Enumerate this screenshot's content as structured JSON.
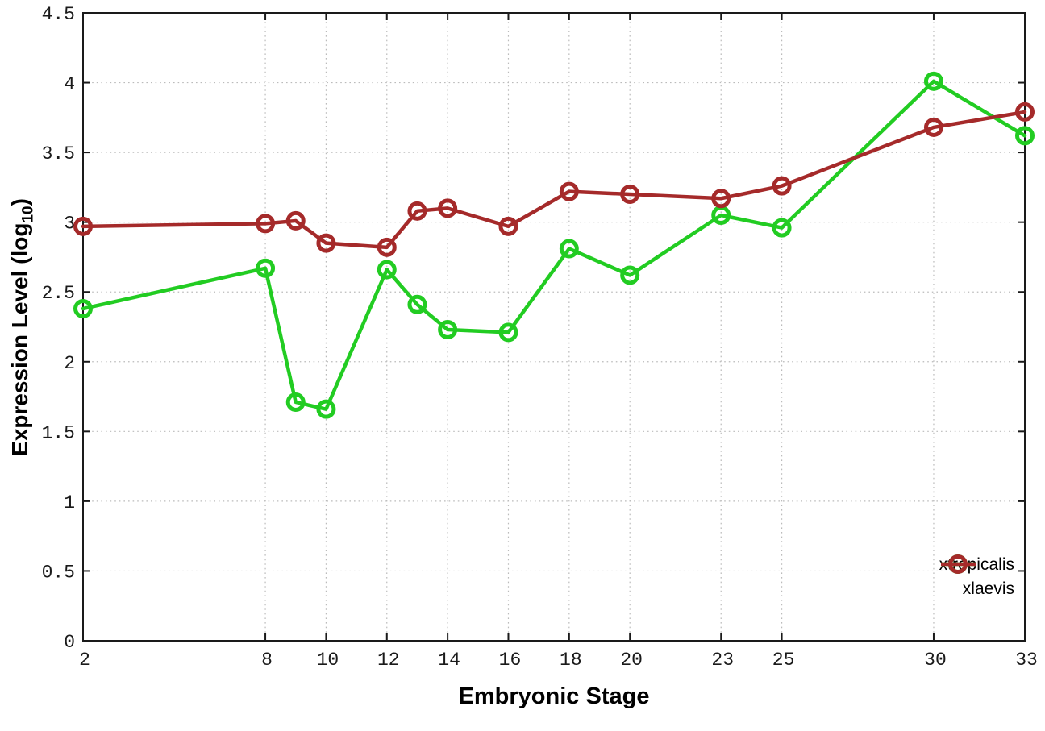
{
  "chart_data": {
    "type": "line",
    "title": "",
    "xlabel": "Embryonic Stage",
    "ylabel": "Expression Level (log10)",
    "ylabel_parts": {
      "main": "Expression Level (log",
      "sub": "10",
      "end": ")"
    },
    "xlim": [
      2,
      33
    ],
    "ylim": [
      0,
      4.5
    ],
    "grid": true,
    "legend_position": "bottom-right",
    "xticks": [
      2,
      8,
      10,
      12,
      14,
      16,
      18,
      20,
      23,
      25,
      30,
      33
    ],
    "xtick_labels": [
      "2",
      "8",
      "10",
      "12",
      "14",
      "16",
      "18",
      "20",
      "23",
      "25",
      "30",
      "33"
    ],
    "yticks": [
      0,
      0.5,
      1,
      1.5,
      2,
      2.5,
      3,
      3.5,
      4,
      4.5
    ],
    "ytick_labels": [
      "0",
      "0.5",
      "1",
      "1.5",
      "2",
      "2.5",
      "3",
      "3.5",
      "4",
      "4.5"
    ],
    "x": [
      2,
      8,
      9,
      10,
      12,
      13,
      14,
      16,
      18,
      20,
      23,
      25,
      30,
      33
    ],
    "series": [
      {
        "name": "xtropicalis",
        "color": "#22cc22",
        "marker": "open-circle",
        "values": [
          2.38,
          2.67,
          1.71,
          1.66,
          2.66,
          2.41,
          2.23,
          2.21,
          2.81,
          2.62,
          3.05,
          2.96,
          4.01,
          3.62
        ]
      },
      {
        "name": "xlaevis",
        "color": "#a52a2a",
        "marker": "open-circle",
        "values": [
          2.97,
          2.99,
          3.01,
          2.85,
          2.82,
          3.08,
          3.1,
          2.97,
          3.22,
          3.2,
          3.17,
          3.26,
          3.68,
          3.79
        ]
      }
    ],
    "colors": {
      "grid": "#bbbbbb",
      "border": "#1a1a1a",
      "tick_text": "#1a1a1a"
    }
  }
}
